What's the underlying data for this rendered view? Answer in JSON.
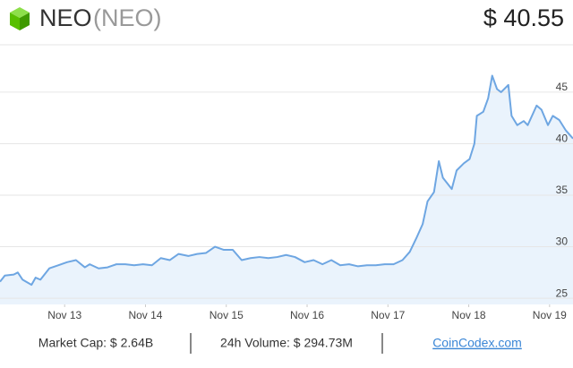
{
  "header": {
    "name": "NEO",
    "symbol": "(NEO)",
    "price": "$ 40.55"
  },
  "chart_data": {
    "type": "area",
    "color": "#6ea6e2",
    "fill": "#eaf3fc",
    "grid": true,
    "x": [
      12.2,
      12.26,
      12.37,
      12.42,
      12.48,
      12.59,
      12.64,
      12.7,
      12.81,
      12.92,
      13.03,
      13.14,
      13.25,
      13.31,
      13.42,
      13.53,
      13.64,
      13.75,
      13.86,
      13.97,
      14.08,
      14.19,
      14.3,
      14.41,
      14.53,
      14.64,
      14.75,
      14.86,
      14.97,
      15.08,
      15.19,
      15.3,
      15.41,
      15.52,
      15.63,
      15.74,
      15.85,
      15.97,
      16.08,
      16.19,
      16.3,
      16.41,
      16.52,
      16.63,
      16.74,
      16.85,
      16.96,
      17.07,
      17.18,
      17.27,
      17.35,
      17.43,
      17.49,
      17.57,
      17.63,
      17.68,
      17.79,
      17.85,
      17.94,
      18.01,
      18.07,
      18.1,
      18.18,
      18.24,
      18.29,
      18.35,
      18.4,
      18.49,
      18.53,
      18.6,
      18.68,
      18.73,
      18.84,
      18.9,
      18.98,
      19.04,
      19.12,
      19.2,
      19.29
    ],
    "values": [
      26.6,
      27.2,
      27.3,
      27.5,
      26.8,
      26.3,
      27.0,
      26.8,
      27.9,
      28.2,
      28.5,
      28.7,
      28.0,
      28.3,
      27.9,
      28.0,
      28.3,
      28.3,
      28.2,
      28.3,
      28.2,
      28.9,
      28.7,
      29.3,
      29.1,
      29.3,
      29.4,
      30.0,
      29.7,
      29.7,
      28.7,
      28.9,
      29.0,
      28.9,
      29.0,
      29.2,
      29.0,
      28.5,
      28.7,
      28.3,
      28.7,
      28.2,
      28.3,
      28.1,
      28.2,
      28.2,
      28.3,
      28.3,
      28.7,
      29.5,
      30.8,
      32.2,
      34.4,
      35.3,
      38.3,
      36.7,
      35.6,
      37.4,
      38.1,
      38.5,
      40.0,
      42.7,
      43.1,
      44.4,
      46.6,
      45.3,
      45.0,
      45.7,
      42.7,
      41.8,
      42.2,
      41.8,
      43.7,
      43.3,
      41.8,
      42.7,
      42.3,
      41.3,
      40.5
    ],
    "xlim": [
      12.2,
      19.29
    ],
    "xticks": [
      {
        "value": 13,
        "label": "Nov 13"
      },
      {
        "value": 14,
        "label": "Nov 14"
      },
      {
        "value": 15,
        "label": "Nov 15"
      },
      {
        "value": 16,
        "label": "Nov 16"
      },
      {
        "value": 17,
        "label": "Nov 17"
      },
      {
        "value": 18,
        "label": "Nov 18"
      },
      {
        "value": 19,
        "label": "Nov 19"
      }
    ],
    "ylim": [
      24.4,
      49.6
    ],
    "yticks": [
      25,
      30,
      35,
      40,
      45
    ]
  },
  "footer": {
    "market_cap": "Market Cap: $ 2.64B",
    "volume": "24h Volume: $ 294.73M",
    "link": "CoinCodex.com"
  }
}
